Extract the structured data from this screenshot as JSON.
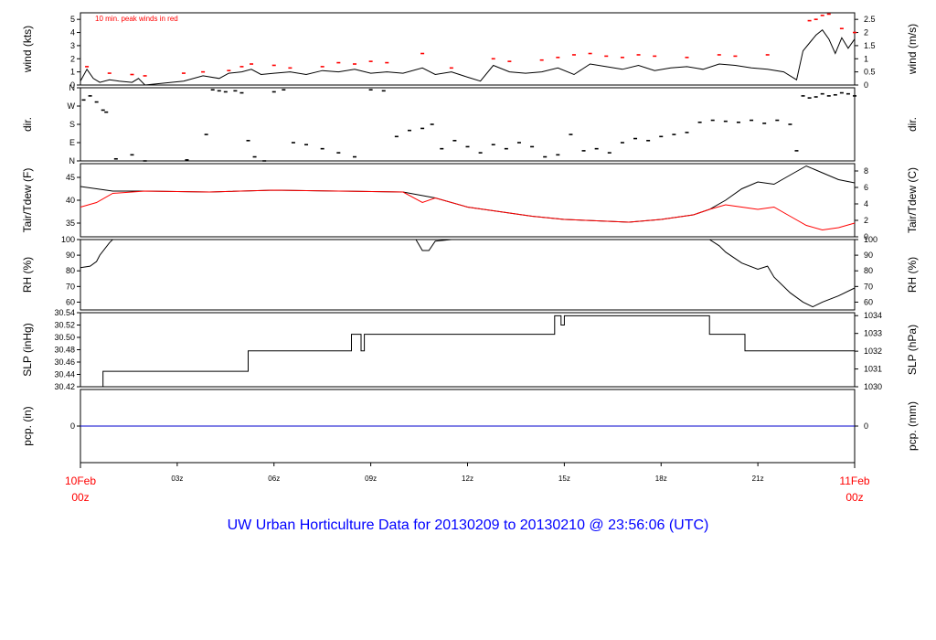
{
  "title": "UW Urban Horticulture Data for 20130209  to  20130210 @ 23:56:06  (UTC)",
  "colors": {
    "axis": "#000000",
    "red": "#ff0000",
    "blue": "#0000cc",
    "title": "#0000ff"
  },
  "x_axis": {
    "start_label": [
      "10Feb",
      "00z"
    ],
    "end_label": [
      "11Feb",
      "00z"
    ],
    "tick_hours": [
      3,
      6,
      9,
      12,
      15,
      18,
      21
    ],
    "tick_labels": [
      "03z",
      "06z",
      "09z",
      "12z",
      "15z",
      "18z",
      "21z"
    ],
    "range_hours": [
      0,
      24
    ]
  },
  "chart_data": [
    {
      "type": "line",
      "id": "wind",
      "ylabel": "wind (kts)",
      "ylabel_right": "wind (m/s)",
      "annotation": "10 min. peak winds in red",
      "ylim": [
        0,
        5.5
      ],
      "yticks": [
        0,
        1,
        2,
        3,
        4,
        5
      ],
      "yticks_right": [
        0,
        0.5,
        1,
        1.5,
        2,
        2.5
      ],
      "series": [
        {
          "name": "wind",
          "color": "#000000",
          "x": [
            0.0,
            0.2,
            0.4,
            0.6,
            0.9,
            1.2,
            1.6,
            1.8,
            2.0,
            3.2,
            3.8,
            4.3,
            4.6,
            5.0,
            5.3,
            5.6,
            6.0,
            6.5,
            7.0,
            7.5,
            8.0,
            8.5,
            9.0,
            9.5,
            10.0,
            10.6,
            11.0,
            11.5,
            12.0,
            12.4,
            12.8,
            13.3,
            13.8,
            14.3,
            14.8,
            15.3,
            15.8,
            16.3,
            16.8,
            17.3,
            17.8,
            18.3,
            18.8,
            19.3,
            19.8,
            20.3,
            20.8,
            21.3,
            21.8,
            22.2,
            22.4,
            22.6,
            22.8,
            23.0,
            23.2,
            23.4,
            23.6,
            23.8,
            24.0
          ],
          "y": [
            0.3,
            1.2,
            0.5,
            0.2,
            0.4,
            0.3,
            0.2,
            0.5,
            0.0,
            0.3,
            0.7,
            0.5,
            0.9,
            1.0,
            1.2,
            0.8,
            0.9,
            1.0,
            0.8,
            1.1,
            1.0,
            1.2,
            0.9,
            1.0,
            0.9,
            1.3,
            0.8,
            1.0,
            0.6,
            0.3,
            1.5,
            1.0,
            0.9,
            1.0,
            1.3,
            0.8,
            1.6,
            1.4,
            1.2,
            1.5,
            1.1,
            1.3,
            1.4,
            1.2,
            1.6,
            1.5,
            1.3,
            1.2,
            1.0,
            0.4,
            2.6,
            3.2,
            3.8,
            4.2,
            3.5,
            2.4,
            3.6,
            2.8,
            3.5
          ]
        },
        {
          "name": "10 min. peak winds",
          "color": "#ff0000",
          "x": [
            0.2,
            0.9,
            1.6,
            2.0,
            3.2,
            3.8,
            4.6,
            5.0,
            5.3,
            6.0,
            6.5,
            7.5,
            8.0,
            8.5,
            9.0,
            9.5,
            10.6,
            11.5,
            12.8,
            13.3,
            14.3,
            14.8,
            15.3,
            15.8,
            16.3,
            16.8,
            17.3,
            17.8,
            18.8,
            19.8,
            20.3,
            21.3,
            22.6,
            22.8,
            23.0,
            23.2,
            23.6,
            24.0
          ],
          "y": [
            1.4,
            0.9,
            0.8,
            0.7,
            0.9,
            1.0,
            1.1,
            1.4,
            1.6,
            1.5,
            1.3,
            1.4,
            1.7,
            1.6,
            1.8,
            1.7,
            2.4,
            1.3,
            2.0,
            1.8,
            1.9,
            2.1,
            2.3,
            2.4,
            2.2,
            2.1,
            2.3,
            2.2,
            2.1,
            2.3,
            2.2,
            2.3,
            4.9,
            5.0,
            5.3,
            5.4,
            4.3,
            4.0
          ]
        }
      ]
    },
    {
      "type": "scatter",
      "id": "dir",
      "ylabel": "dir.",
      "ylabel_right": "dir.",
      "ylim": [
        0,
        360
      ],
      "yticks": [
        0,
        90,
        180,
        270,
        360
      ],
      "ytick_labels": [
        "N",
        "E",
        "S",
        "W",
        "N"
      ],
      "series": [
        {
          "name": "direction",
          "color": "#000000",
          "x": [
            0.1,
            0.3,
            0.5,
            0.7,
            0.8,
            1.1,
            1.6,
            2.0,
            3.3,
            3.9,
            4.1,
            4.3,
            4.5,
            4.8,
            5.0,
            5.2,
            5.4,
            5.7,
            6.0,
            6.3,
            6.6,
            7.0,
            7.5,
            8.0,
            8.5,
            9.0,
            9.4,
            9.8,
            10.2,
            10.6,
            10.9,
            11.2,
            11.6,
            12.0,
            12.4,
            12.8,
            13.2,
            13.6,
            14.0,
            14.4,
            14.8,
            15.2,
            15.6,
            16.0,
            16.4,
            16.8,
            17.2,
            17.6,
            18.0,
            18.4,
            18.8,
            19.2,
            19.6,
            20.0,
            20.4,
            20.8,
            21.2,
            21.6,
            22.0,
            22.2,
            22.4,
            22.6,
            22.8,
            23.0,
            23.2,
            23.4,
            23.6,
            23.8,
            24.0
          ],
          "y": [
            300,
            320,
            290,
            250,
            240,
            10,
            30,
            0,
            5,
            130,
            350,
            345,
            340,
            345,
            335,
            100,
            20,
            0,
            340,
            350,
            90,
            80,
            60,
            40,
            20,
            350,
            345,
            120,
            150,
            160,
            180,
            60,
            100,
            70,
            40,
            80,
            60,
            90,
            70,
            20,
            30,
            130,
            50,
            60,
            40,
            90,
            110,
            100,
            120,
            130,
            140,
            190,
            200,
            195,
            190,
            200,
            185,
            200,
            180,
            50,
            320,
            310,
            315,
            330,
            320,
            325,
            335,
            330,
            320
          ]
        }
      ]
    },
    {
      "type": "line",
      "id": "temp",
      "ylabel": "Tair/Tdew (F)",
      "ylabel_right": "Tair/Tdew (C)",
      "ylim": [
        32,
        48
      ],
      "yticks": [
        35,
        40,
        45
      ],
      "yticks_right": [
        0,
        2,
        4,
        6,
        8
      ],
      "series": [
        {
          "name": "Tair",
          "color": "#000000",
          "x": [
            0.0,
            1.0,
            2.0,
            4.0,
            6.0,
            8.0,
            10.0,
            11.0,
            12.0,
            13.0,
            14.0,
            15.0,
            16.0,
            17.0,
            18.0,
            19.0,
            19.5,
            20.0,
            20.5,
            21.0,
            21.5,
            22.0,
            22.5,
            23.0,
            23.5,
            24.0
          ],
          "y": [
            43.0,
            42.0,
            42.0,
            41.8,
            42.2,
            42.0,
            41.8,
            40.5,
            38.5,
            37.5,
            36.5,
            35.8,
            35.5,
            35.2,
            35.8,
            36.8,
            38.0,
            40.0,
            42.5,
            44.0,
            43.5,
            45.5,
            47.5,
            46.0,
            44.5,
            43.8
          ]
        },
        {
          "name": "Tdew",
          "color": "#ff0000",
          "x": [
            0.0,
            0.5,
            1.0,
            2.0,
            4.0,
            6.0,
            8.0,
            10.0,
            10.6,
            11.0,
            12.0,
            13.0,
            14.0,
            15.0,
            16.0,
            17.0,
            18.0,
            19.0,
            19.5,
            20.0,
            20.5,
            21.0,
            21.5,
            22.0,
            22.5,
            23.0,
            23.5,
            24.0
          ],
          "y": [
            38.5,
            39.5,
            41.5,
            42.0,
            41.8,
            42.2,
            42.0,
            41.8,
            39.5,
            40.5,
            38.5,
            37.5,
            36.5,
            35.8,
            35.5,
            35.2,
            35.8,
            36.8,
            38.0,
            39.0,
            38.5,
            38.0,
            38.5,
            36.5,
            34.5,
            33.5,
            34.0,
            35.0
          ]
        }
      ]
    },
    {
      "type": "line",
      "id": "rh",
      "ylabel": "RH (%)",
      "ylabel_right": "RH (%)",
      "ylim": [
        55,
        100
      ],
      "yticks": [
        60,
        70,
        80,
        90,
        100
      ],
      "yticks_right": [
        60,
        70,
        80,
        90,
        100
      ],
      "series": [
        {
          "name": "RH",
          "color": "#000000",
          "x": [
            0.0,
            0.3,
            0.5,
            0.6,
            0.9,
            1.0,
            10.4,
            10.6,
            10.8,
            11.0,
            11.5,
            19.5,
            19.8,
            20.0,
            20.5,
            21.0,
            21.3,
            21.5,
            22.0,
            22.4,
            22.7,
            23.0,
            23.5,
            24.0
          ],
          "y": [
            82,
            83,
            86,
            90,
            98,
            100,
            100,
            93,
            93,
            99,
            100,
            100,
            96,
            92,
            85,
            81,
            83,
            76,
            66,
            60,
            57,
            60,
            64,
            69
          ]
        }
      ]
    },
    {
      "type": "line",
      "id": "slp",
      "ylabel": "SLP (inHg)",
      "ylabel_right": "SLP (hPa)",
      "ylim": [
        30.42,
        30.54
      ],
      "yticks": [
        30.42,
        30.44,
        30.46,
        30.48,
        30.5,
        30.52,
        30.54
      ],
      "ytick_labels": [
        "30.42",
        "30.44",
        "30.46",
        "30.48",
        "30.50",
        "30.52",
        "30.54"
      ],
      "yticks_right": [
        1030,
        1031,
        1032,
        1033,
        1034
      ],
      "series": [
        {
          "name": "SLP",
          "color": "#000000",
          "x": [
            0.0,
            0.7,
            0.7,
            5.2,
            5.2,
            8.4,
            8.4,
            8.7,
            8.7,
            8.8,
            8.8,
            14.7,
            14.7,
            14.9,
            14.9,
            15.0,
            15.0,
            19.5,
            19.5,
            20.6,
            20.6,
            24.0
          ],
          "y": [
            30.42,
            30.42,
            30.445,
            30.445,
            30.478,
            30.478,
            30.505,
            30.505,
            30.478,
            30.478,
            30.505,
            30.505,
            30.535,
            30.535,
            30.52,
            30.52,
            30.535,
            30.535,
            30.505,
            30.505,
            30.478,
            30.478
          ]
        }
      ]
    },
    {
      "type": "line",
      "id": "pcp",
      "ylabel": "pcp. (in)",
      "ylabel_right": "pcp. (mm)",
      "ylim": [
        -1,
        1
      ],
      "yticks": [
        0
      ],
      "yticks_right": [
        0
      ],
      "series": [
        {
          "name": "precip",
          "color": "#0000cc",
          "x": [
            0,
            24
          ],
          "y": [
            0,
            0
          ]
        }
      ]
    }
  ]
}
